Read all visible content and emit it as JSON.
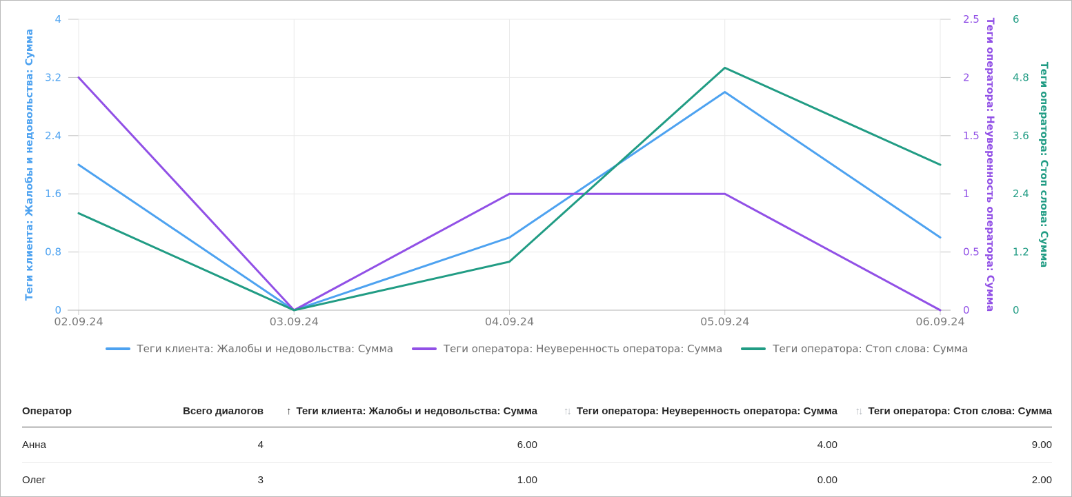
{
  "chart_data": {
    "type": "line",
    "title": "",
    "x": [
      "02.09.24",
      "03.09.24",
      "04.09.24",
      "05.09.24",
      "06.09.24"
    ],
    "series": [
      {
        "name": "Теги клиента: Жалобы и недовольства: Сумма",
        "axis": "left",
        "color": "#4DA2F0",
        "values": [
          2,
          0,
          1,
          3,
          1
        ]
      },
      {
        "name": "Теги оператора: Неуверенность оператора: Сумма",
        "axis": "right1",
        "color": "#9150E6",
        "values": [
          2,
          0,
          1,
          1,
          0
        ]
      },
      {
        "name": "Теги оператора: Стоп слова: Сумма",
        "axis": "right2",
        "color": "#219C84",
        "values": [
          2,
          0,
          1,
          5,
          3
        ]
      }
    ],
    "axes": {
      "left": {
        "label": "Теги клиента: Жалобы и недовольства: Сумма",
        "color": "#4DA2F0",
        "min": 0,
        "max": 4,
        "ticks": [
          "0",
          "0.8",
          "1.6",
          "2.4",
          "3.2",
          "4"
        ]
      },
      "right1": {
        "label": "Теги оператора: Неуверенность оператора: Сумма",
        "color": "#9150E6",
        "min": 0,
        "max": 2.5,
        "ticks": [
          "0",
          "0.5",
          "1",
          "1.5",
          "2",
          "2.5"
        ]
      },
      "right2": {
        "label": "Теги оператора: Стоп слова: Сумма",
        "color": "#219C84",
        "min": 0,
        "max": 6,
        "ticks": [
          "0",
          "1.2",
          "2.4",
          "3.6",
          "4.8",
          "6"
        ]
      }
    },
    "grid": true,
    "legend_position": "bottom"
  },
  "table": {
    "columns": [
      {
        "label": "Оператор",
        "align": "left",
        "sort": ""
      },
      {
        "label": "Всего диалогов",
        "align": "right",
        "sort": ""
      },
      {
        "label": "Теги клиента: Жалобы и недовольства: Сумма",
        "align": "right",
        "sort": "asc"
      },
      {
        "label": "Теги оператора: Неуверенность оператора: Сумма",
        "align": "right",
        "sort": "both"
      },
      {
        "label": "Теги оператора: Стоп слова: Сумма",
        "align": "right",
        "sort": "both"
      }
    ],
    "sort_glyphs": {
      "asc": "↑",
      "both": "↑↓"
    },
    "rows": [
      [
        "Анна",
        "4",
        "6.00",
        "4.00",
        "9.00"
      ],
      [
        "Олег",
        "3",
        "1.00",
        "0.00",
        "2.00"
      ]
    ]
  },
  "colors": {
    "grid": "#E9E9E9",
    "axis_line": "#B3B3B3",
    "tick_dash": "#C6C6C6",
    "x_label": "#7B7B7B",
    "legend_text": "#6E6E6E",
    "table_text": "#262626",
    "sort_active": "#262626",
    "sort_inactive": "#B3B8BD",
    "header_border": "#4A4A4A",
    "row_border": "#E8E8E8",
    "table_bottom_border": "#8F8F8F",
    "page_border": "#B9B9B9"
  }
}
